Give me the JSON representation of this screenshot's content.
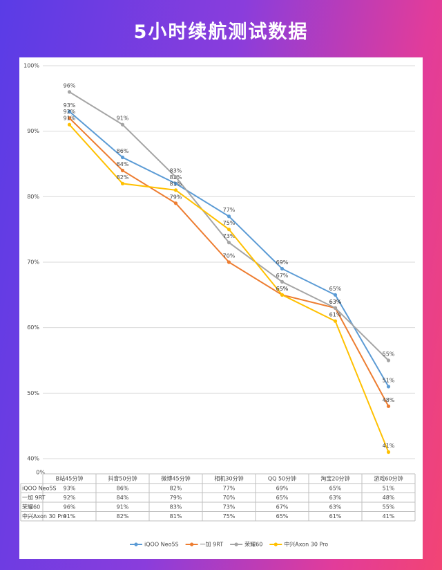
{
  "chart_data": {
    "type": "line",
    "title": "5小时续航测试数据",
    "categories": [
      "B站45分钟",
      "抖音50分钟",
      "微博45分钟",
      "相机30分钟",
      "QQ 50分钟",
      "淘宝20分钟",
      "游戏60分钟"
    ],
    "series": [
      {
        "name": "iQOO Neo5S",
        "color": "#5b9bd5",
        "values": [
          93,
          86,
          82,
          77,
          69,
          65,
          51
        ],
        "value_labels": [
          "93%",
          "86%",
          "82%",
          "77%",
          "69%",
          "65%",
          "51%"
        ]
      },
      {
        "name": "一加 9RT",
        "color": "#ed7d31",
        "values": [
          92,
          84,
          79,
          70,
          65,
          63,
          48
        ],
        "value_labels": [
          "92%",
          "84%",
          "79%",
          "70%",
          "65%",
          "63%",
          "48%"
        ]
      },
      {
        "name": "荣耀60",
        "color": "#a5a5a5",
        "values": [
          96,
          91,
          83,
          73,
          67,
          63,
          55
        ],
        "value_labels": [
          "96%",
          "91%",
          "83%",
          "73%",
          "67%",
          "63%",
          "55%"
        ]
      },
      {
        "name": "中兴Axon 30 Pro",
        "color": "#ffc000",
        "values": [
          91,
          82,
          81,
          75,
          65,
          61,
          41
        ],
        "value_labels": [
          "91%",
          "82%",
          "81%",
          "75%",
          "65%",
          "61%",
          "41%"
        ]
      }
    ],
    "ylim": [
      40,
      100
    ],
    "yticks": [
      {
        "value": 40,
        "label": "40%"
      },
      {
        "value": 50,
        "label": "50%"
      },
      {
        "value": 60,
        "label": "60%"
      },
      {
        "value": 70,
        "label": "70%"
      },
      {
        "value": 80,
        "label": "80%"
      },
      {
        "value": 90,
        "label": "90%"
      },
      {
        "value": 100,
        "label": "100%"
      }
    ],
    "axis_base_label": "0%",
    "grid": true,
    "legend": "bottom"
  }
}
